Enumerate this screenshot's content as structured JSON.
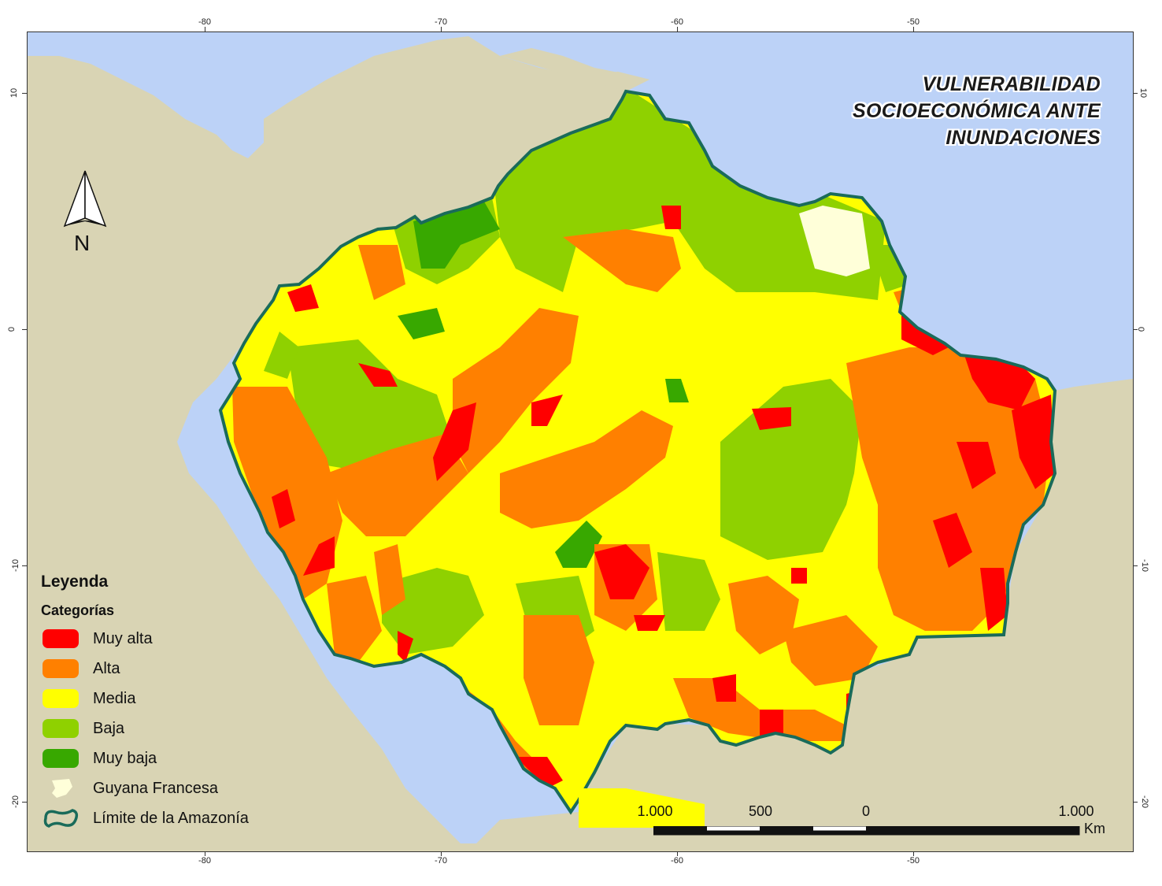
{
  "title": {
    "line1": "VULNERABILIDAD",
    "line2": "SOCIOECONÓMICA ANTE",
    "line3": "INUNDACIONES"
  },
  "north_arrow": {
    "label": "N",
    "icon": "north-arrow-icon"
  },
  "axes": {
    "longitude_ticks": [
      "-80",
      "-70",
      "-60",
      "-50"
    ],
    "latitude_ticks": [
      "10",
      "0",
      "-10",
      "-20"
    ]
  },
  "legend": {
    "title": "Leyenda",
    "subtitle": "Categorías",
    "items": [
      {
        "label": "Muy alta",
        "color": "#ff0000"
      },
      {
        "label": "Alta",
        "color": "#ff8000"
      },
      {
        "label": "Media",
        "color": "#ffff00"
      },
      {
        "label": "Baja",
        "color": "#8fd100"
      },
      {
        "label": "Muy baja",
        "color": "#38a800"
      },
      {
        "label": "Guyana Francesa",
        "color": "#ffffd9"
      },
      {
        "label": "Límite de la Amazonía",
        "color": "#1a6b5a"
      }
    ]
  },
  "scale_bar": {
    "labels": [
      "1.000",
      "500",
      "0",
      "1.000"
    ],
    "unit": "Km"
  },
  "colors": {
    "ocean": "#bcd2f7",
    "land": "#d8d3b5",
    "boundary": "#1a6b5a"
  }
}
